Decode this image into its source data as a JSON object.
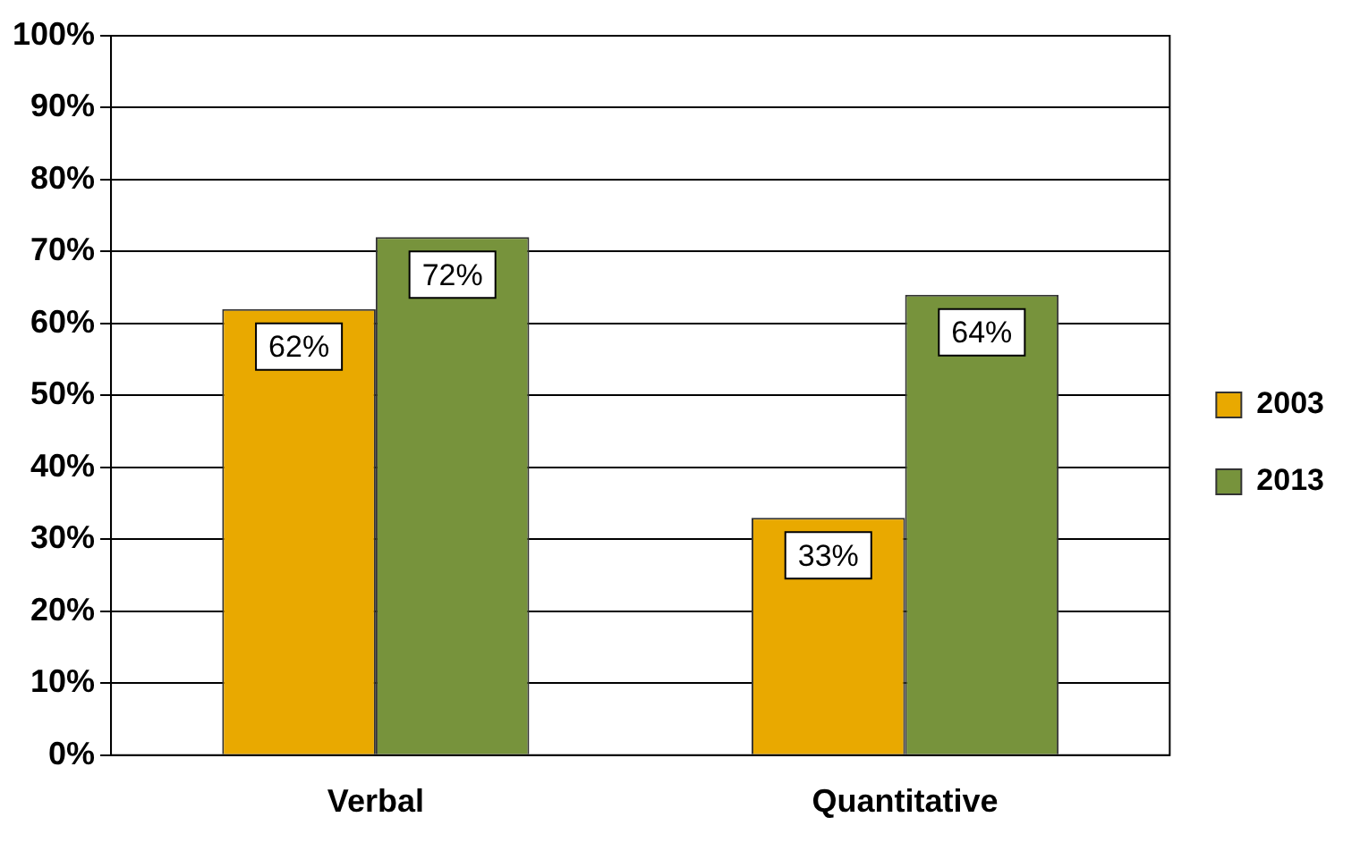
{
  "chart_data": {
    "type": "bar",
    "categories": [
      "Verbal",
      "Quantitative"
    ],
    "series": [
      {
        "name": "2003",
        "color": "#e9a900",
        "values": [
          62,
          33
        ],
        "value_labels": [
          "62%",
          "33%"
        ]
      },
      {
        "name": "2013",
        "color": "#77933c",
        "values": [
          72,
          64
        ],
        "value_labels": [
          "72%",
          "64%"
        ]
      }
    ],
    "ylim": [
      0,
      100
    ],
    "yticks": [
      {
        "value": 0,
        "label": "0%"
      },
      {
        "value": 10,
        "label": "10%"
      },
      {
        "value": 20,
        "label": "20%"
      },
      {
        "value": 30,
        "label": "30%"
      },
      {
        "value": 40,
        "label": "40%"
      },
      {
        "value": 50,
        "label": "50%"
      },
      {
        "value": 60,
        "label": "60%"
      },
      {
        "value": 70,
        "label": "70%"
      },
      {
        "value": 80,
        "label": "80%"
      },
      {
        "value": 90,
        "label": "90%"
      },
      {
        "value": 100,
        "label": "100%"
      }
    ],
    "grid": "y",
    "legend": "right"
  }
}
